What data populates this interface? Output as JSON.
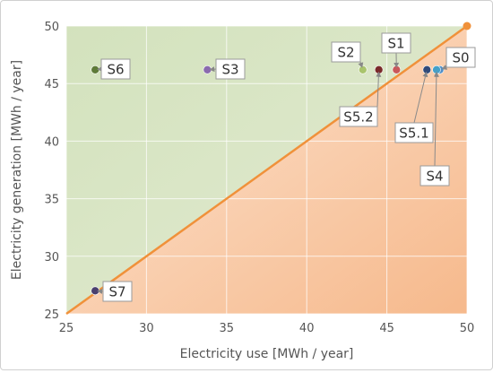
{
  "chart_data": {
    "type": "scatter",
    "title": "",
    "xlabel": "Electricity use [MWh / year]",
    "ylabel": "Electricity generation [MWh / year]",
    "xlim": [
      25,
      50
    ],
    "ylim": [
      25,
      50
    ],
    "x_ticks": [
      "25",
      "30",
      "35",
      "40",
      "45",
      "50"
    ],
    "y_ticks": [
      "25",
      "30",
      "35",
      "40",
      "45",
      "50"
    ],
    "grid": true,
    "legend": "none",
    "regions": {
      "above_diagonal_color": "#d5e3c3",
      "below_diagonal_color": "#f8c9a6",
      "diagonal_color": "#f0913a"
    },
    "diagonal_line": {
      "x": [
        25,
        50
      ],
      "y": [
        25,
        50
      ]
    },
    "points": [
      {
        "label": "S0",
        "x": 48.3,
        "y": 46.2,
        "color": "#4e8ec7"
      },
      {
        "label": "S1",
        "x": 45.6,
        "y": 46.2,
        "color": "#c9585a"
      },
      {
        "label": "S2",
        "x": 43.5,
        "y": 46.2,
        "color": "#a9c46c"
      },
      {
        "label": "S3",
        "x": 33.8,
        "y": 46.2,
        "color": "#8a6aae"
      },
      {
        "label": "S4",
        "x": 48.1,
        "y": 46.2,
        "color": "#45a0c8"
      },
      {
        "label": "S5.1",
        "x": 47.5,
        "y": 46.2,
        "color": "#2f4a7a"
      },
      {
        "label": "S5.2",
        "x": 44.5,
        "y": 46.2,
        "color": "#7a2a2a"
      },
      {
        "label": "S6",
        "x": 26.8,
        "y": 46.2,
        "color": "#5e7a38"
      },
      {
        "label": "S7",
        "x": 26.8,
        "y": 27.0,
        "color": "#4a3f6e"
      }
    ],
    "endpoint_marker": {
      "x": 50,
      "y": 50,
      "color": "#f0913a"
    }
  }
}
